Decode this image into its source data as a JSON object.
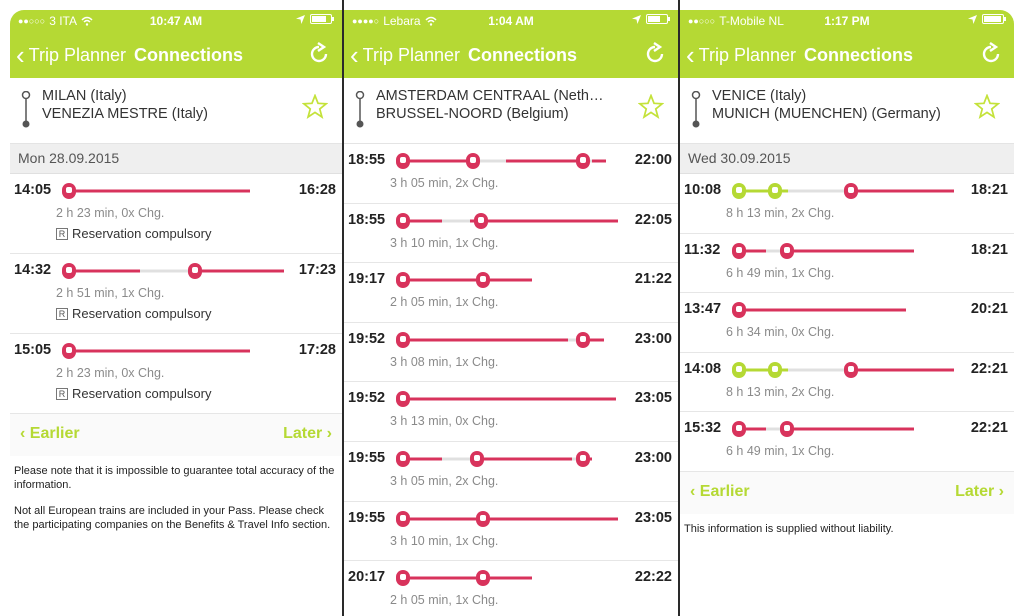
{
  "colors": {
    "accent": "#b5d934",
    "train_red": "#d8335c",
    "train_green": "#b5d934",
    "track_gray": "#e0e0e0"
  },
  "screens": [
    {
      "status": {
        "carrier": "3 ITA",
        "time": "10:47 AM",
        "battery_level": 0.7
      },
      "nav": {
        "back_label": "Trip Planner",
        "title": "Connections"
      },
      "route": {
        "from": "MILAN (Italy)",
        "to": "VENEZIA MESTRE (Italy)"
      },
      "date": "Mon 28.09.2015",
      "connections": [
        {
          "dep": "14:05",
          "arr": "16:28",
          "duration": "2 h 23 min, 0x Chg.",
          "note": "Reservation compulsory",
          "segments": [
            {
              "icons": [
                "red"
              ],
              "bar": [
                0,
                0.8,
                "red"
              ]
            }
          ]
        },
        {
          "dep": "14:32",
          "arr": "17:23",
          "duration": "2 h 51 min, 1x Chg.",
          "note": "Reservation compulsory",
          "segments": [
            {
              "icons": [
                "red@0",
                "red@0.55"
              ],
              "bars": [
                [
                  0,
                  0.34,
                  "red"
                ],
                [
                  0.34,
                  0.55,
                  "gray"
                ],
                [
                  0.55,
                  1,
                  "red"
                ]
              ]
            }
          ]
        },
        {
          "dep": "15:05",
          "arr": "17:28",
          "duration": "2 h 23 min, 0x Chg.",
          "note": "Reservation compulsory",
          "segments": [
            {
              "icons": [
                "red@0"
              ],
              "bars": [
                [
                  0,
                  0.8,
                  "red"
                ]
              ]
            }
          ]
        }
      ],
      "pager": {
        "earlier": "Earlier",
        "later": "Later"
      },
      "notes": [
        "Please note that it is impossible to guarantee total accuracy of the information.",
        "Not all European trains are included in your Pass. Please check the participating companies on the Benefits & Travel Info section."
      ]
    },
    {
      "status": {
        "carrier": "Lebara",
        "time": "1:04 AM",
        "battery_level": 0.6
      },
      "nav": {
        "back_label": "Trip Planner",
        "title": "Connections"
      },
      "route": {
        "from": "AMSTERDAM CENTRAAL (Neth…",
        "to": "BRUSSEL-NOORD (Belgium)"
      },
      "connections": [
        {
          "dep": "18:55",
          "arr": "22:00",
          "duration": "3 h 05 min, 2x Chg."
        },
        {
          "dep": "18:55",
          "arr": "22:05",
          "duration": "3 h 10 min, 1x Chg."
        },
        {
          "dep": "19:17",
          "arr": "21:22",
          "duration": "2 h 05 min, 1x Chg."
        },
        {
          "dep": "19:52",
          "arr": "23:00",
          "duration": "3 h 08 min, 1x Chg."
        },
        {
          "dep": "19:52",
          "arr": "23:05",
          "duration": "3 h 13 min, 0x Chg."
        },
        {
          "dep": "19:55",
          "arr": "23:00",
          "duration": "3 h 05 min, 2x Chg."
        },
        {
          "dep": "19:55",
          "arr": "23:05",
          "duration": "3 h 10 min, 1x Chg."
        },
        {
          "dep": "20:17",
          "arr": "22:22",
          "duration": "2 h 05 min, 1x Chg."
        }
      ]
    },
    {
      "status": {
        "carrier": "T-Mobile NL",
        "time": "1:17 PM",
        "battery_level": 0.85
      },
      "nav": {
        "back_label": "Trip Planner",
        "title": "Connections"
      },
      "route": {
        "from": "VENICE (Italy)",
        "to": "MUNICH (MUENCHEN) (Germany)"
      },
      "date": "Wed 30.09.2015",
      "connections": [
        {
          "dep": "10:08",
          "arr": "18:21",
          "duration": "8 h 13 min, 2x Chg."
        },
        {
          "dep": "11:32",
          "arr": "18:21",
          "duration": "6 h 49 min, 1x Chg."
        },
        {
          "dep": "13:47",
          "arr": "20:21",
          "duration": "6 h 34 min, 0x Chg."
        },
        {
          "dep": "14:08",
          "arr": "22:21",
          "duration": "8 h 13 min, 2x Chg."
        },
        {
          "dep": "15:32",
          "arr": "22:21",
          "duration": "6 h 49 min, 1x Chg."
        }
      ],
      "pager": {
        "earlier": "Earlier",
        "later": "Later"
      },
      "notes": [
        "This information is supplied without liability."
      ]
    }
  ]
}
